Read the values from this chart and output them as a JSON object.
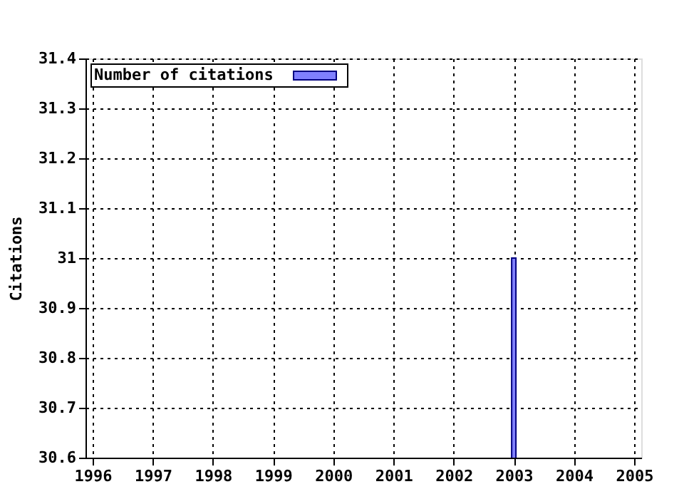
{
  "chart_data": {
    "type": "bar",
    "ylabel": "Citations",
    "x": [
      2003
    ],
    "series": [
      {
        "name": "Number of citations",
        "color": "#8080ff",
        "values": [
          31
        ]
      }
    ],
    "xlim": [
      1996,
      2005
    ],
    "xticks": [
      1996,
      1997,
      1998,
      1999,
      2000,
      2001,
      2002,
      2003,
      2004,
      2005
    ],
    "ylim": [
      30.6,
      31.4
    ],
    "yticks": [
      30.6,
      30.7,
      30.8,
      30.9,
      31,
      31.1,
      31.2,
      31.3,
      31.4
    ],
    "grid": true,
    "legend": "top left"
  }
}
